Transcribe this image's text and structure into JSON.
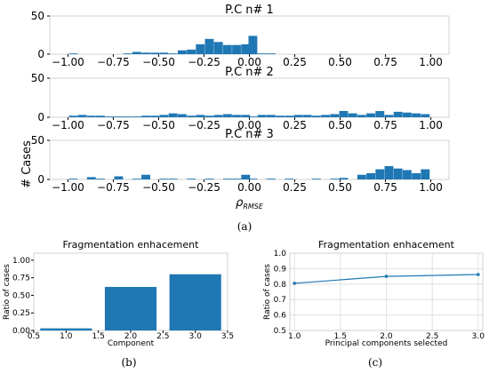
{
  "colors": {
    "bar": "#1f77b4",
    "line": "#1f77b4",
    "grid": "#d9d9d9",
    "spine": "#d0d0d0"
  },
  "captions": {
    "a": "(a)",
    "b": "(b)",
    "c": "(c)"
  },
  "chart_data": [
    {
      "type": "bar",
      "subplots": [
        {
          "title": "P.C n# 1",
          "bin_width": 0.05,
          "x": [
            -0.97,
            -0.67,
            -0.62,
            -0.57,
            -0.52,
            -0.47,
            -0.42,
            -0.37,
            -0.32,
            -0.27,
            -0.22,
            -0.17,
            -0.12,
            -0.07,
            -0.02,
            0.02,
            0.07,
            0.12
          ],
          "values": [
            1,
            1,
            3,
            2,
            2,
            2,
            1,
            5,
            6,
            13,
            20,
            16,
            12,
            12,
            13,
            24,
            1,
            1
          ],
          "xticks": [
            "−1.00",
            "−0.75",
            "−0.50",
            "−0.25",
            "0.00",
            "0.25",
            "0.50",
            "0.75",
            "1.00"
          ],
          "yticks": [
            "0",
            "50"
          ],
          "xlim": [
            -1.1,
            1.1
          ],
          "ylim": [
            0,
            50
          ]
        },
        {
          "title": "P.C n# 2",
          "bin_width": 0.05,
          "x": [
            -0.97,
            -0.92,
            -0.87,
            -0.82,
            -0.77,
            -0.72,
            -0.67,
            -0.62,
            -0.57,
            -0.52,
            -0.47,
            -0.42,
            -0.37,
            -0.32,
            -0.27,
            -0.22,
            -0.17,
            -0.12,
            -0.07,
            -0.02,
            0.02,
            0.07,
            0.12,
            0.17,
            0.22,
            0.27,
            0.32,
            0.37,
            0.42,
            0.47,
            0.52,
            0.57,
            0.62,
            0.67,
            0.72,
            0.77,
            0.82,
            0.87,
            0.92,
            0.97
          ],
          "values": [
            2,
            3,
            2,
            2,
            1,
            1,
            1,
            1,
            2,
            2,
            3,
            5,
            4,
            2,
            3,
            2,
            3,
            4,
            3,
            3,
            1,
            3,
            3,
            2,
            2,
            3,
            3,
            2,
            3,
            4,
            8,
            5,
            3,
            5,
            8,
            3,
            7,
            6,
            5,
            4
          ],
          "xticks": [
            "−1.00",
            "−0.75",
            "−0.50",
            "−0.25",
            "0.00",
            "0.25",
            "0.50",
            "0.75",
            "1.00"
          ],
          "yticks": [
            "0",
            "50"
          ],
          "xlim": [
            -1.1,
            1.1
          ],
          "ylim": [
            0,
            50
          ]
        },
        {
          "title": "P.C n# 3",
          "bin_width": 0.05,
          "x": [
            -0.97,
            -0.87,
            -0.82,
            -0.72,
            -0.62,
            -0.57,
            -0.47,
            -0.42,
            -0.32,
            -0.22,
            -0.12,
            -0.07,
            -0.02,
            0.02,
            0.12,
            0.22,
            0.37,
            0.47,
            0.52,
            0.62,
            0.67,
            0.72,
            0.77,
            0.82,
            0.87,
            0.92,
            0.97
          ],
          "values": [
            1,
            3,
            1,
            4,
            1,
            6,
            1,
            1,
            1,
            1,
            1,
            1,
            6,
            1,
            1,
            1,
            1,
            1,
            2,
            6,
            8,
            13,
            17,
            14,
            12,
            8,
            13
          ],
          "xticks": [
            "−1.00",
            "−0.75",
            "−0.50",
            "−0.25",
            "0.00",
            "0.25",
            "0.50",
            "0.75",
            "1.00"
          ],
          "yticks": [
            "0",
            "50"
          ],
          "xlim": [
            -1.1,
            1.1
          ],
          "ylim": [
            0,
            50
          ],
          "xlabel": "ρ_RMSE"
        }
      ],
      "ylabel": "# Cases"
    },
    {
      "type": "bar",
      "title": "Fragmentation enhacement",
      "categories": [
        1.0,
        2.0,
        3.0
      ],
      "values": [
        0.03,
        0.62,
        0.8
      ],
      "xlabel": "Component",
      "ylabel": "Ratio of cases",
      "xlim": [
        0.5,
        3.5
      ],
      "ylim": [
        0,
        1.1
      ],
      "xticks": [
        "0.5",
        "1.0",
        "1.5",
        "2.0",
        "2.5",
        "3.0",
        "3.5"
      ],
      "yticks": [
        "0.00",
        "0.25",
        "0.50",
        "0.75",
        "1.00"
      ]
    },
    {
      "type": "line",
      "title": "Fragmentation enhacement",
      "x": [
        1.0,
        2.0,
        3.0
      ],
      "values": [
        0.805,
        0.85,
        0.862
      ],
      "xlabel": "Principal components selected",
      "ylabel": "Ratio of cases",
      "xlim": [
        0.95,
        3.05
      ],
      "ylim": [
        0.5,
        1.0
      ],
      "xticks": [
        "1.0",
        "1.5",
        "2.0",
        "2.5",
        "3.0"
      ],
      "yticks": [
        "0.5",
        "0.6",
        "0.7",
        "0.8",
        "0.9",
        "1.0"
      ],
      "grid": true
    }
  ]
}
